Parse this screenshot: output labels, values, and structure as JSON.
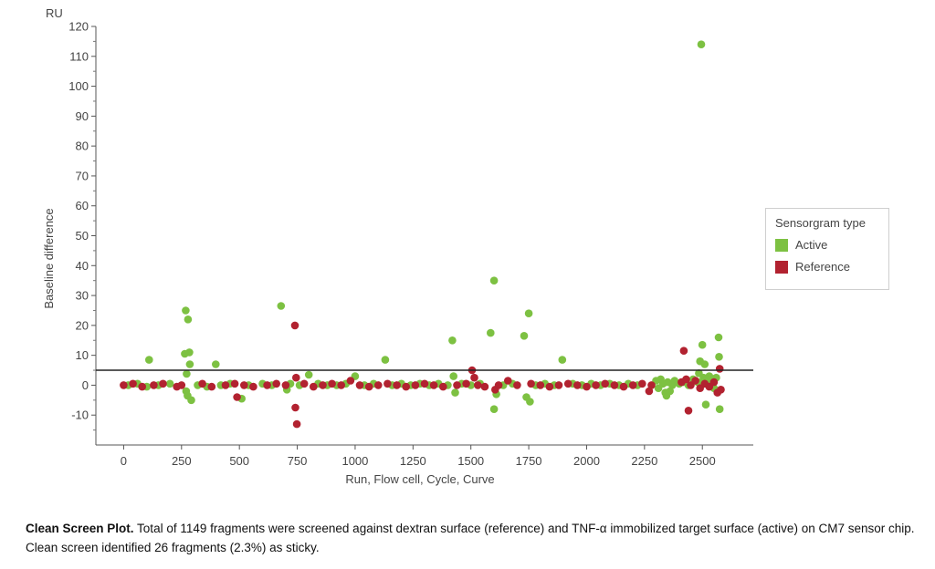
{
  "chart_data": {
    "type": "scatter",
    "y_unit": "RU",
    "xlabel": "Run, Flow cell, Cycle, Curve",
    "ylabel": "Baseline difference",
    "xlim": [
      -120,
      2720
    ],
    "ylim": [
      -20,
      120
    ],
    "x_ticks": [
      0,
      250,
      500,
      750,
      1000,
      1250,
      1500,
      1750,
      2000,
      2250,
      2500
    ],
    "y_ticks": [
      -10,
      0,
      10,
      20,
      30,
      40,
      50,
      60,
      70,
      80,
      90,
      100,
      110,
      120
    ],
    "threshold_line": 5,
    "grid": false,
    "legend": {
      "title": "Sensorgram type",
      "placement": "right"
    },
    "series": [
      {
        "name": "Active",
        "color": "#7dc142",
        "points": [
          [
            110,
            8.5
          ],
          [
            268,
            25
          ],
          [
            278,
            22
          ],
          [
            264,
            10.5
          ],
          [
            284,
            11
          ],
          [
            286,
            7
          ],
          [
            272,
            3.8
          ],
          [
            270,
            -2
          ],
          [
            276,
            -3.5
          ],
          [
            292,
            -5
          ],
          [
            398,
            7
          ],
          [
            510,
            -4.5
          ],
          [
            680,
            26.5
          ],
          [
            705,
            -1.5
          ],
          [
            800,
            3.5
          ],
          [
            1000,
            3
          ],
          [
            1130,
            8.5
          ],
          [
            1420,
            15
          ],
          [
            1425,
            3
          ],
          [
            1432,
            -2.5
          ],
          [
            1585,
            17.5
          ],
          [
            1600,
            35
          ],
          [
            1600,
            -8
          ],
          [
            1610,
            -3
          ],
          [
            1730,
            16.5
          ],
          [
            1740,
            -4
          ],
          [
            1750,
            24
          ],
          [
            1755,
            -5.5
          ],
          [
            1895,
            8.5
          ],
          [
            2345,
            -3.5
          ],
          [
            2360,
            -2
          ],
          [
            2495,
            114
          ],
          [
            2500,
            13.5
          ],
          [
            2490,
            8
          ],
          [
            2485,
            4
          ],
          [
            2505,
            2.5
          ],
          [
            2510,
            7
          ],
          [
            2515,
            -6.5
          ],
          [
            2570,
            16
          ],
          [
            2572,
            9.5
          ],
          [
            2575,
            -8
          ],
          [
            20,
            0
          ],
          [
            60,
            0.5
          ],
          [
            100,
            -0.5
          ],
          [
            150,
            0
          ],
          [
            200,
            0.5
          ],
          [
            320,
            0
          ],
          [
            360,
            -0.5
          ],
          [
            420,
            0
          ],
          [
            460,
            0.5
          ],
          [
            540,
            0
          ],
          [
            600,
            0.5
          ],
          [
            640,
            0
          ],
          [
            720,
            0.5
          ],
          [
            760,
            0
          ],
          [
            840,
            0.5
          ],
          [
            880,
            0
          ],
          [
            920,
            0
          ],
          [
            960,
            0.5
          ],
          [
            1040,
            0
          ],
          [
            1080,
            0.5
          ],
          [
            1160,
            0
          ],
          [
            1200,
            0.5
          ],
          [
            1240,
            0
          ],
          [
            1280,
            0.5
          ],
          [
            1320,
            0
          ],
          [
            1360,
            0.5
          ],
          [
            1400,
            0
          ],
          [
            1460,
            0.5
          ],
          [
            1500,
            0
          ],
          [
            1540,
            0.5
          ],
          [
            1640,
            0
          ],
          [
            1680,
            0.5
          ],
          [
            1780,
            0
          ],
          [
            1820,
            0.5
          ],
          [
            1860,
            0
          ],
          [
            1940,
            0.5
          ],
          [
            1980,
            0
          ],
          [
            2020,
            0.5
          ],
          [
            2060,
            0
          ],
          [
            2100,
            0.5
          ],
          [
            2140,
            0
          ],
          [
            2180,
            0.5
          ],
          [
            2220,
            0
          ],
          [
            2300,
            1.5
          ],
          [
            2310,
            -1
          ],
          [
            2320,
            2
          ],
          [
            2330,
            0.5
          ],
          [
            2340,
            -2.5
          ],
          [
            2350,
            1
          ],
          [
            2370,
            0
          ],
          [
            2380,
            1.5
          ],
          [
            2400,
            0.5
          ],
          [
            2420,
            1
          ],
          [
            2440,
            0
          ],
          [
            2460,
            2
          ],
          [
            2480,
            1
          ],
          [
            2520,
            1.5
          ],
          [
            2530,
            3
          ],
          [
            2540,
            0.5
          ],
          [
            2550,
            -1
          ],
          [
            2560,
            2.5
          ]
        ]
      },
      {
        "name": "Reference",
        "color": "#b22230",
        "points": [
          [
            740,
            20
          ],
          [
            745,
            2.5
          ],
          [
            742,
            -7.5
          ],
          [
            748,
            -13
          ],
          [
            1505,
            5
          ],
          [
            1515,
            2.5
          ],
          [
            2420,
            11.5
          ],
          [
            2440,
            -8.5
          ],
          [
            2575,
            5.5
          ],
          [
            2565,
            -2.5
          ],
          [
            490,
            -4
          ],
          [
            1605,
            -1.5
          ],
          [
            0,
            0
          ],
          [
            40,
            0.5
          ],
          [
            80,
            -0.5
          ],
          [
            130,
            0
          ],
          [
            170,
            0.5
          ],
          [
            230,
            -0.5
          ],
          [
            250,
            0
          ],
          [
            340,
            0.5
          ],
          [
            380,
            -0.5
          ],
          [
            440,
            0
          ],
          [
            480,
            0.5
          ],
          [
            520,
            0
          ],
          [
            560,
            -0.5
          ],
          [
            620,
            0
          ],
          [
            660,
            0.5
          ],
          [
            700,
            0
          ],
          [
            780,
            0.5
          ],
          [
            820,
            -0.5
          ],
          [
            860,
            0
          ],
          [
            900,
            0.5
          ],
          [
            940,
            0
          ],
          [
            980,
            1.5
          ],
          [
            1020,
            0
          ],
          [
            1060,
            -0.5
          ],
          [
            1100,
            0
          ],
          [
            1140,
            0.5
          ],
          [
            1180,
            0
          ],
          [
            1220,
            -0.5
          ],
          [
            1260,
            0
          ],
          [
            1300,
            0.5
          ],
          [
            1340,
            0
          ],
          [
            1380,
            -0.5
          ],
          [
            1440,
            0
          ],
          [
            1480,
            0.5
          ],
          [
            1530,
            0
          ],
          [
            1560,
            -0.5
          ],
          [
            1620,
            0
          ],
          [
            1660,
            1.5
          ],
          [
            1700,
            0
          ],
          [
            1760,
            0.5
          ],
          [
            1800,
            0
          ],
          [
            1840,
            -0.5
          ],
          [
            1880,
            0
          ],
          [
            1920,
            0.5
          ],
          [
            1960,
            0
          ],
          [
            2000,
            -0.5
          ],
          [
            2040,
            0
          ],
          [
            2080,
            0.5
          ],
          [
            2120,
            0
          ],
          [
            2160,
            -0.5
          ],
          [
            2200,
            0
          ],
          [
            2240,
            0.5
          ],
          [
            2270,
            -2
          ],
          [
            2280,
            0
          ],
          [
            2410,
            1
          ],
          [
            2430,
            2
          ],
          [
            2450,
            0
          ],
          [
            2470,
            1.5
          ],
          [
            2490,
            -1
          ],
          [
            2510,
            0.5
          ],
          [
            2530,
            -0.5
          ],
          [
            2550,
            1
          ],
          [
            2580,
            -1.5
          ]
        ]
      }
    ]
  },
  "caption": {
    "title": "Clean Screen Plot.",
    "text": " Total of 1149 fragments were screened against dextran surface (reference) and TNF-α immobilized target surface (active) on CM7 sensor chip. Clean screen identified 26 fragments (2.3%) as sticky."
  }
}
